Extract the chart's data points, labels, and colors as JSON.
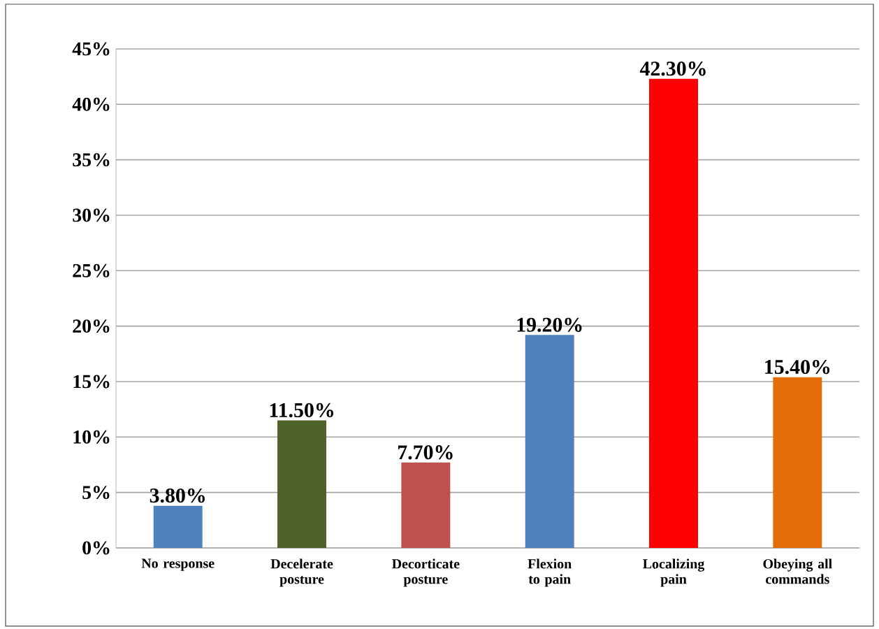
{
  "chart_data": {
    "type": "bar",
    "categories": [
      "No response",
      "Decelerate posture",
      "Decorticate posture",
      "Flexion to pain",
      "Localizing pain",
      "Obeying all commands"
    ],
    "values": [
      3.8,
      11.5,
      7.7,
      19.2,
      42.3,
      15.4
    ],
    "colors": [
      "#4f81bd",
      "#4f6228",
      "#c0504d",
      "#4f81bd",
      "#ff0000",
      "#e46c0a"
    ],
    "value_labels": [
      "3.80%",
      "11.50%",
      "7.70%",
      "19.20%",
      "42.30%",
      "15.40%"
    ],
    "ylim": [
      0,
      45
    ],
    "yticks": [
      {
        "value": 0,
        "label": "0%"
      },
      {
        "value": 5,
        "label": "5%"
      },
      {
        "value": 10,
        "label": "10%"
      },
      {
        "value": 15,
        "label": "15%"
      },
      {
        "value": 20,
        "label": "20%"
      },
      {
        "value": 25,
        "label": "25%"
      },
      {
        "value": 30,
        "label": "30%"
      },
      {
        "value": 35,
        "label": "35%"
      },
      {
        "value": 40,
        "label": "40%"
      },
      {
        "value": 45,
        "label": "45%"
      }
    ],
    "grid": "y"
  }
}
